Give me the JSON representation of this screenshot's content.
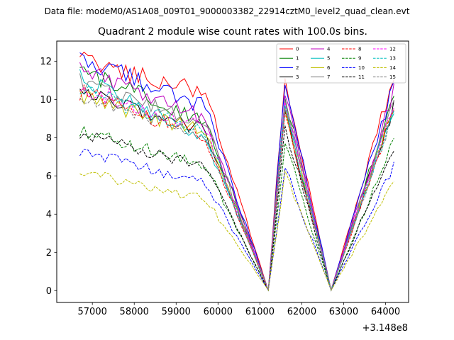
{
  "chart_data": {
    "type": "line",
    "suptitle": "Data file: modeM0/AS1A08_009T01_9000003382_22914cztM0_level2_quad_clean.evt",
    "title": "Quadrant 2 module wise count rates with 100.0s bins.",
    "xlabel": "",
    "ylabel": "",
    "x_offset_label": "+3.148e8",
    "xlim": [
      56150,
      64550
    ],
    "ylim": [
      -0.62,
      13.05
    ],
    "xticks": [
      57000,
      58000,
      59000,
      60000,
      61000,
      62000,
      63000,
      64000
    ],
    "yticks": [
      0,
      2,
      4,
      6,
      8,
      10,
      12
    ],
    "grid": false,
    "legend_position": "top-right",
    "legend_columns": 4,
    "segments": [
      {
        "start": 56700,
        "end": 59700,
        "n": 31
      },
      {
        "start": 59700,
        "end": 61200,
        "n": 15
      },
      {
        "start": 61200,
        "end": 61600,
        "n": 5
      },
      {
        "start": 61600,
        "end": 62700,
        "n": 11
      },
      {
        "start": 62700,
        "end": 64200,
        "n": 16
      }
    ],
    "series": [
      {
        "name": "0",
        "color": "#ff0000",
        "style": "solid",
        "levels": [
          12.1,
          10.4,
          0.02,
          11.3,
          0.02,
          11.2,
          8.2
        ]
      },
      {
        "name": "1",
        "color": "#008000",
        "style": "solid",
        "levels": [
          11.5,
          8.9,
          0.02,
          10.2,
          0.02,
          10.2,
          7.4
        ]
      },
      {
        "name": "2",
        "color": "#0000ff",
        "style": "solid",
        "levels": [
          12.2,
          9.6,
          0.02,
          10.9,
          0.02,
          10.8,
          7.8
        ]
      },
      {
        "name": "3",
        "color": "#000000",
        "style": "solid",
        "levels": [
          10.3,
          8.4,
          0.02,
          9.5,
          0.02,
          9.7,
          7.1
        ]
      },
      {
        "name": "4",
        "color": "#bf00bf",
        "style": "solid",
        "levels": [
          11.6,
          9.0,
          0.02,
          10.3,
          0.02,
          10.4,
          7.6
        ]
      },
      {
        "name": "5",
        "color": "#00bfbf",
        "style": "solid",
        "levels": [
          11.2,
          8.0,
          0.02,
          10.0,
          0.02,
          9.6,
          6.9
        ]
      },
      {
        "name": "6",
        "color": "#bfbf00",
        "style": "solid",
        "levels": [
          10.1,
          8.3,
          0.02,
          9.6,
          0.02,
          9.6,
          7.0
        ]
      },
      {
        "name": "7",
        "color": "#808080",
        "style": "solid",
        "levels": [
          10.9,
          8.8,
          0.02,
          10.0,
          0.02,
          10.0,
          7.4
        ]
      },
      {
        "name": "8",
        "color": "#ff0000",
        "style": "dashed",
        "levels": [
          10.4,
          8.0,
          0.02,
          9.3,
          0.02,
          9.4,
          6.8
        ]
      },
      {
        "name": "9",
        "color": "#008000",
        "style": "dashed",
        "levels": [
          8.4,
          6.6,
          0.02,
          7.7,
          0.02,
          7.8,
          5.7
        ]
      },
      {
        "name": "10",
        "color": "#0000ff",
        "style": "dashed",
        "levels": [
          7.3,
          5.6,
          0.02,
          6.4,
          0.02,
          6.5,
          4.6
        ]
      },
      {
        "name": "11",
        "color": "#000000",
        "style": "dashed",
        "levels": [
          8.2,
          6.5,
          0.02,
          8.6,
          0.02,
          7.6,
          5.3
        ]
      },
      {
        "name": "12",
        "color": "#ff00ff",
        "style": "dashed",
        "levels": [
          10.7,
          8.5,
          0.02,
          9.8,
          0.02,
          9.8,
          7.2
        ]
      },
      {
        "name": "13",
        "color": "#00bfbf",
        "style": "dashed",
        "levels": [
          10.5,
          8.3,
          0.02,
          9.6,
          0.02,
          9.5,
          6.9
        ]
      },
      {
        "name": "14",
        "color": "#bfbf00",
        "style": "dashed",
        "levels": [
          6.2,
          4.8,
          0.02,
          6.2,
          0.02,
          5.7,
          4.1
        ]
      },
      {
        "name": "15",
        "color": "#808080",
        "style": "dashed",
        "levels": [
          10.2,
          8.2,
          0.02,
          9.4,
          0.02,
          9.3,
          6.8
        ]
      }
    ]
  }
}
